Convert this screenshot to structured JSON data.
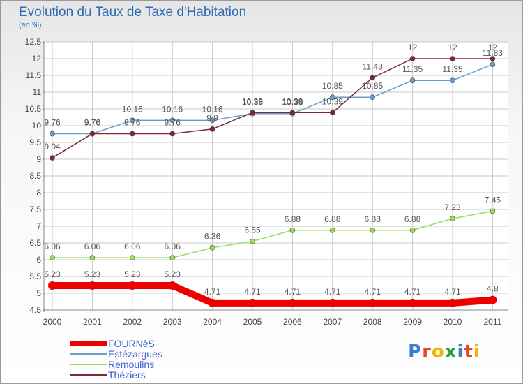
{
  "chart_data": {
    "type": "line",
    "title": "Evolution du Taux de Taxe d'Habitation",
    "subtitle": "(en %)",
    "categories": [
      "2000",
      "2001",
      "2002",
      "2003",
      "2004",
      "2005",
      "2006",
      "2007",
      "2008",
      "2009",
      "2010",
      "2011"
    ],
    "ylim": [
      4.5,
      12.5
    ],
    "yticks": [
      4.5,
      5,
      5.5,
      6,
      6.5,
      7,
      7.5,
      8,
      8.5,
      9,
      9.5,
      10,
      10.5,
      11,
      11.5,
      12,
      12.5
    ],
    "series": [
      {
        "name": "FOURNèS",
        "color": "#ee0000",
        "values": [
          5.23,
          5.23,
          5.23,
          5.23,
          4.71,
          4.71,
          4.71,
          4.71,
          4.71,
          4.71,
          4.71,
          4.8
        ]
      },
      {
        "name": "Estézargues",
        "color": "#6a9ccc",
        "values": [
          9.76,
          9.76,
          10.16,
          10.16,
          10.16,
          10.36,
          10.36,
          10.85,
          10.85,
          11.35,
          11.35,
          11.83
        ]
      },
      {
        "name": "Remoulins",
        "color": "#99dd55",
        "values": [
          6.06,
          6.06,
          6.06,
          6.06,
          6.36,
          6.55,
          6.88,
          6.88,
          6.88,
          6.88,
          7.23,
          7.45
        ]
      },
      {
        "name": "Théziers",
        "color": "#7a2a30",
        "values": [
          9.04,
          9.76,
          9.76,
          9.76,
          9.9,
          10.39,
          10.39,
          10.39,
          11.43,
          12,
          12,
          12
        ]
      }
    ]
  },
  "logo": {
    "text": "Proxiti"
  }
}
